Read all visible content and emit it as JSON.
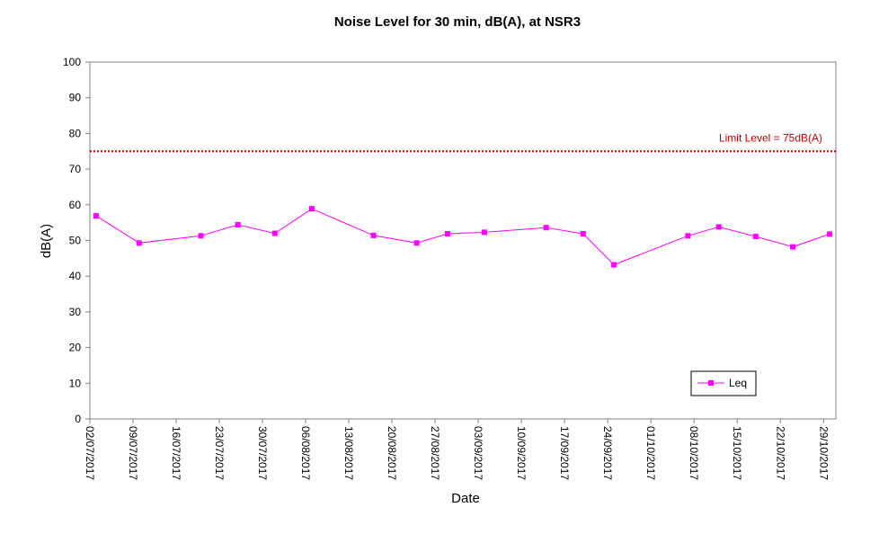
{
  "chart_data": {
    "type": "line",
    "title": "Noise Level for 30 min, dB(A), at NSR3",
    "xlabel": "Date",
    "ylabel": "dB(A)",
    "ylim": [
      0,
      100
    ],
    "yticks": [
      0,
      10,
      20,
      30,
      40,
      50,
      60,
      70,
      80,
      90,
      100
    ],
    "xlim": [
      "2017-07-02",
      "2017-10-31"
    ],
    "xtick_labels": [
      "02/07/2017",
      "09/07/2017",
      "16/07/2017",
      "23/07/2017",
      "30/07/2017",
      "06/08/2017",
      "13/08/2017",
      "20/08/2017",
      "27/08/2017",
      "03/09/2017",
      "10/09/2017",
      "17/09/2017",
      "24/09/2017",
      "01/10/2017",
      "08/10/2017",
      "15/10/2017",
      "22/10/2017",
      "29/10/2017"
    ],
    "grid": false,
    "legend_position": "bottom-right",
    "series": [
      {
        "name": "Leq",
        "color": "#ff00ff",
        "marker": "square",
        "points": [
          {
            "x": "2017-07-03",
            "y": 56.9
          },
          {
            "x": "2017-07-10",
            "y": 49.3
          },
          {
            "x": "2017-07-20",
            "y": 51.3
          },
          {
            "x": "2017-07-26",
            "y": 54.4
          },
          {
            "x": "2017-08-01",
            "y": 52.0
          },
          {
            "x": "2017-08-07",
            "y": 58.9
          },
          {
            "x": "2017-08-17",
            "y": 51.4
          },
          {
            "x": "2017-08-24",
            "y": 49.3
          },
          {
            "x": "2017-08-29",
            "y": 51.9
          },
          {
            "x": "2017-09-04",
            "y": 52.3
          },
          {
            "x": "2017-09-14",
            "y": 53.6
          },
          {
            "x": "2017-09-20",
            "y": 51.9
          },
          {
            "x": "2017-09-25",
            "y": 43.2
          },
          {
            "x": "2017-10-07",
            "y": 51.3
          },
          {
            "x": "2017-10-12",
            "y": 53.8
          },
          {
            "x": "2017-10-18",
            "y": 51.1
          },
          {
            "x": "2017-10-24",
            "y": 48.2
          },
          {
            "x": "2017-10-30",
            "y": 51.8
          }
        ]
      }
    ],
    "limit_line": {
      "value": 75,
      "label": "Limit Level = 75dB(A)",
      "color": "#c00000",
      "style": "dotted"
    }
  }
}
